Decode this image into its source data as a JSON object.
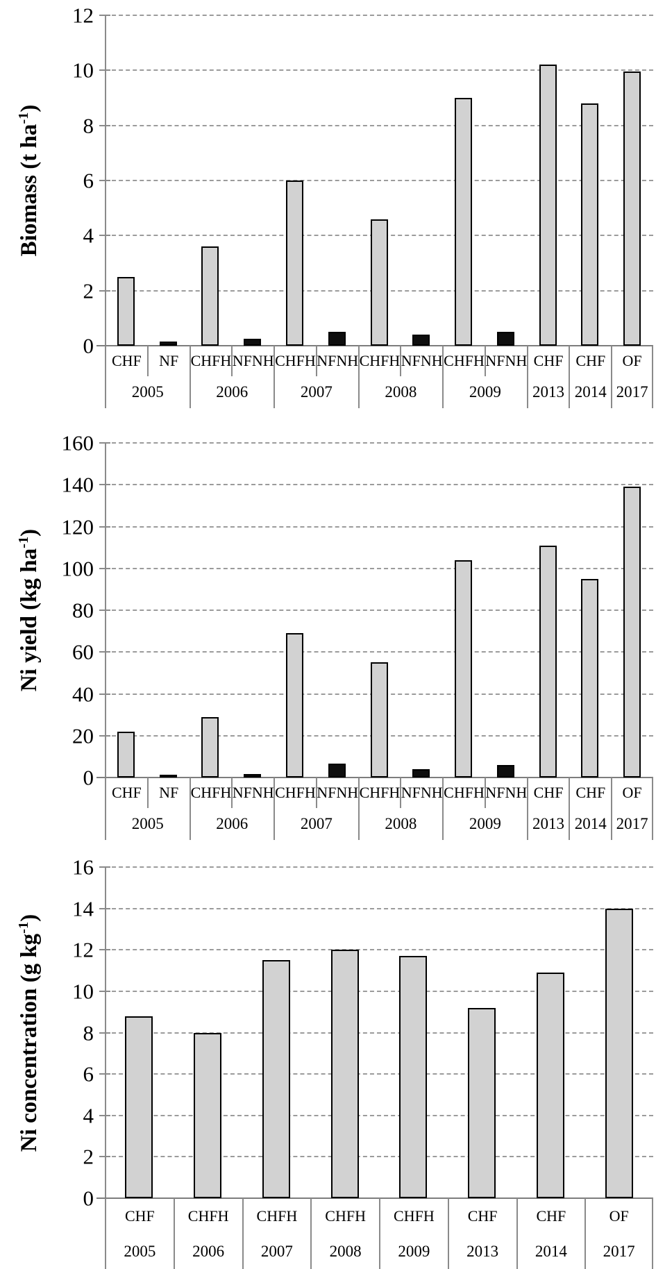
{
  "figure": {
    "description_visible_text_only": "Three stacked bar charts",
    "bar_fill_gray": "#d2d2d2",
    "bar_fill_black": "#0e0e0e",
    "gridline_color": "#9b9b9b",
    "axis_color": "#8a8a8a"
  },
  "chart_data": [
    {
      "type": "bar",
      "title": "",
      "ylabel": "Biomass (t ha-1)",
      "ylabel_prefix": "Biomass (t ha",
      "ylabel_sup": "-1",
      "ylabel_suffix": ")",
      "ylim": [
        0,
        12
      ],
      "yticks": [
        0,
        2,
        4,
        6,
        8,
        10,
        12
      ],
      "grid": "horizontal-dashed",
      "legend": "none",
      "bar_colors": {
        "gray": "#d2d2d2",
        "black": "#0e0e0e"
      },
      "groups": [
        {
          "year": "2005",
          "bars": [
            {
              "label": "CHF",
              "value": 2.5,
              "color": "gray"
            },
            {
              "label": "NF",
              "value": 0.15,
              "color": "black"
            }
          ]
        },
        {
          "year": "2006",
          "bars": [
            {
              "label": "CHFH",
              "value": 3.6,
              "color": "gray"
            },
            {
              "label": "NFNH",
              "value": 0.25,
              "color": "black"
            }
          ]
        },
        {
          "year": "2007",
          "bars": [
            {
              "label": "CHFH",
              "value": 6.0,
              "color": "gray"
            },
            {
              "label": "NFNH",
              "value": 0.5,
              "color": "black"
            }
          ]
        },
        {
          "year": "2008",
          "bars": [
            {
              "label": "CHFH",
              "value": 4.6,
              "color": "gray"
            },
            {
              "label": "NFNH",
              "value": 0.4,
              "color": "black"
            }
          ]
        },
        {
          "year": "2009",
          "bars": [
            {
              "label": "CHFH",
              "value": 9.0,
              "color": "gray"
            },
            {
              "label": "NFNH",
              "value": 0.5,
              "color": "black"
            }
          ]
        },
        {
          "year": "2013",
          "bars": [
            {
              "label": "CHF",
              "value": 10.2,
              "color": "gray"
            }
          ]
        },
        {
          "year": "2014",
          "bars": [
            {
              "label": "CHF",
              "value": 8.8,
              "color": "gray"
            }
          ]
        },
        {
          "year": "2017",
          "bars": [
            {
              "label": "OF",
              "value": 9.95,
              "color": "gray"
            }
          ]
        }
      ]
    },
    {
      "type": "bar",
      "title": "",
      "ylabel": "Ni yield (kg ha-1)",
      "ylabel_prefix": "Ni yield (kg ha",
      "ylabel_sup": "-1",
      "ylabel_suffix": ")",
      "ylim": [
        0,
        160
      ],
      "yticks": [
        0,
        20,
        40,
        60,
        80,
        100,
        120,
        140,
        160
      ],
      "grid": "horizontal-dashed",
      "legend": "none",
      "bar_colors": {
        "gray": "#d2d2d2",
        "black": "#0e0e0e"
      },
      "groups": [
        {
          "year": "2005",
          "bars": [
            {
              "label": "CHF",
              "value": 22,
              "color": "gray"
            },
            {
              "label": "NF",
              "value": 1,
              "color": "black"
            }
          ]
        },
        {
          "year": "2006",
          "bars": [
            {
              "label": "CHFH",
              "value": 29,
              "color": "gray"
            },
            {
              "label": "NFNH",
              "value": 1.5,
              "color": "black"
            }
          ]
        },
        {
          "year": "2007",
          "bars": [
            {
              "label": "CHFH",
              "value": 69,
              "color": "gray"
            },
            {
              "label": "NFNH",
              "value": 6.5,
              "color": "black"
            }
          ]
        },
        {
          "year": "2008",
          "bars": [
            {
              "label": "CHFH",
              "value": 55,
              "color": "gray"
            },
            {
              "label": "NFNH",
              "value": 4,
              "color": "black"
            }
          ]
        },
        {
          "year": "2009",
          "bars": [
            {
              "label": "CHFH",
              "value": 104,
              "color": "gray"
            },
            {
              "label": "NFNH",
              "value": 6,
              "color": "black"
            }
          ]
        },
        {
          "year": "2013",
          "bars": [
            {
              "label": "CHF",
              "value": 111,
              "color": "gray"
            }
          ]
        },
        {
          "year": "2014",
          "bars": [
            {
              "label": "CHF",
              "value": 95,
              "color": "gray"
            }
          ]
        },
        {
          "year": "2017",
          "bars": [
            {
              "label": "OF",
              "value": 139,
              "color": "gray"
            }
          ]
        }
      ]
    },
    {
      "type": "bar",
      "title": "",
      "ylabel": "Ni concentration (g kg-1)",
      "ylabel_prefix": "Ni concentration (g kg",
      "ylabel_sup": "-1",
      "ylabel_suffix": ")",
      "ylim": [
        0,
        16
      ],
      "yticks": [
        0,
        2,
        4,
        6,
        8,
        10,
        12,
        14,
        16
      ],
      "grid": "horizontal-dashed",
      "legend": "none",
      "bar_colors": {
        "gray": "#d2d2d2",
        "black": "#0e0e0e"
      },
      "groups": [
        {
          "year": "2005",
          "bars": [
            {
              "label": "CHF",
              "value": 8.8,
              "color": "gray"
            }
          ]
        },
        {
          "year": "2006",
          "bars": [
            {
              "label": "CHFH",
              "value": 8.0,
              "color": "gray"
            }
          ]
        },
        {
          "year": "2007",
          "bars": [
            {
              "label": "CHFH",
              "value": 11.5,
              "color": "gray"
            }
          ]
        },
        {
          "year": "2008",
          "bars": [
            {
              "label": "CHFH",
              "value": 12.0,
              "color": "gray"
            }
          ]
        },
        {
          "year": "2009",
          "bars": [
            {
              "label": "CHFH",
              "value": 11.7,
              "color": "gray"
            }
          ]
        },
        {
          "year": "2013",
          "bars": [
            {
              "label": "CHF",
              "value": 9.2,
              "color": "gray"
            }
          ]
        },
        {
          "year": "2014",
          "bars": [
            {
              "label": "CHF",
              "value": 10.9,
              "color": "gray"
            }
          ]
        },
        {
          "year": "2017",
          "bars": [
            {
              "label": "OF",
              "value": 14.0,
              "color": "gray"
            }
          ]
        }
      ]
    }
  ]
}
